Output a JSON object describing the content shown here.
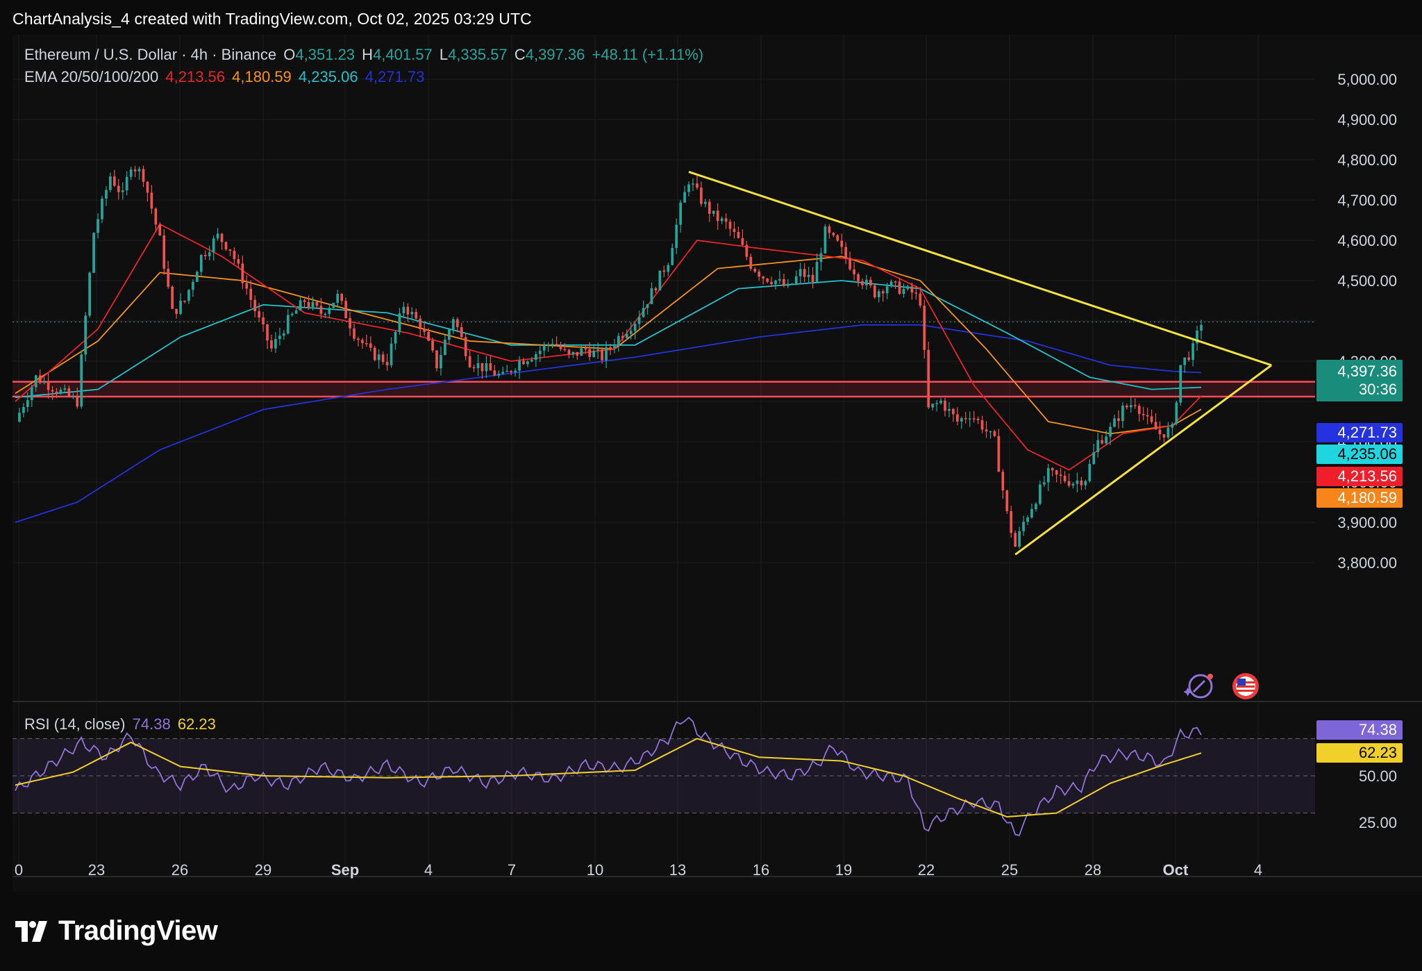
{
  "header": {
    "text": "ChartAnalysis_4 created with TradingView.com, Oct 02, 2025 03:29 UTC"
  },
  "legend": {
    "symbol": "Ethereum / U.S. Dollar · 4h · Binance",
    "o_label": "O",
    "o": "4,351.23",
    "h_label": "H",
    "h": "4,401.57",
    "l_label": "L",
    "l": "4,335.57",
    "c_label": "C",
    "c": "4,397.36",
    "change": "+48.11 (+1.11%)",
    "ema_label": "EMA 20/50/100/200",
    "ema20": "4,213.56",
    "ema50": "4,180.59",
    "ema100": "4,235.06",
    "ema200": "4,271.73"
  },
  "rsi_legend": {
    "label": "RSI (14, close)",
    "rsi": "74.38",
    "ma": "62.23"
  },
  "price_tags": {
    "last": "4,397.36",
    "countdown": "30:36",
    "ema200": "4,271.73",
    "ema100": "4,235.06",
    "ema20": "4,213.56",
    "ema50": "4,180.59",
    "rsi": "74.38",
    "rsi_ma": "62.23"
  },
  "colors": {
    "up": "#26a69a",
    "down": "#ef5350",
    "ema20": "#e8252a",
    "ema50": "#f7931a",
    "ema100": "#22c1c8",
    "ema200": "#2333d8",
    "trendline": "#f5e23c",
    "zone": "#ff4d5a",
    "rsi": "#8f73d9",
    "rsi_ma": "#f2d02a"
  },
  "logo": {
    "text": "TradingView"
  },
  "chart_data": [
    {
      "type": "candlestick",
      "title": "Ethereum / U.S. Dollar · 4h · Binance",
      "x_ticks": [
        "0",
        "23",
        "26",
        "29",
        "Sep",
        "4",
        "7",
        "10",
        "13",
        "16",
        "19",
        "22",
        "25",
        "28",
        "Oct",
        "4"
      ],
      "y_ticks": [
        "5,000.00",
        "4,900.00",
        "4,800.00",
        "4,700.00",
        "4,600.00",
        "4,500.00",
        "4,300.00",
        "4,100.00",
        "4,000.00",
        "3,900.00",
        "3,800.00"
      ],
      "ylim": [
        3720,
        5030
      ],
      "grid": true,
      "close_path": [
        [
          0,
          4150
        ],
        [
          5,
          4260
        ],
        [
          10,
          4230
        ],
        [
          15,
          4200
        ],
        [
          19,
          4620
        ],
        [
          21,
          4690
        ],
        [
          23,
          4760
        ],
        [
          26,
          4710
        ],
        [
          28,
          4790
        ],
        [
          31,
          4760
        ],
        [
          35,
          4600
        ],
        [
          38,
          4420
        ],
        [
          41,
          4450
        ],
        [
          45,
          4560
        ],
        [
          49,
          4610
        ],
        [
          52,
          4580
        ],
        [
          56,
          4480
        ],
        [
          59,
          4400
        ],
        [
          62,
          4330
        ],
        [
          66,
          4400
        ],
        [
          70,
          4450
        ],
        [
          74,
          4420
        ],
        [
          78,
          4460
        ],
        [
          82,
          4370
        ],
        [
          86,
          4320
        ],
        [
          90,
          4300
        ],
        [
          94,
          4440
        ],
        [
          98,
          4390
        ],
        [
          102,
          4290
        ],
        [
          106,
          4410
        ],
        [
          110,
          4300
        ],
        [
          114,
          4280
        ],
        [
          118,
          4260
        ],
        [
          122,
          4300
        ],
        [
          126,
          4320
        ],
        [
          130,
          4350
        ],
        [
          134,
          4310
        ],
        [
          138,
          4330
        ],
        [
          142,
          4310
        ],
        [
          146,
          4360
        ],
        [
          150,
          4400
        ],
        [
          154,
          4470
        ],
        [
          158,
          4550
        ],
        [
          161,
          4680
        ],
        [
          163,
          4750
        ],
        [
          166,
          4700
        ],
        [
          169,
          4660
        ],
        [
          172,
          4640
        ],
        [
          175,
          4600
        ],
        [
          178,
          4540
        ],
        [
          181,
          4510
        ],
        [
          184,
          4500
        ],
        [
          187,
          4480
        ],
        [
          190,
          4520
        ],
        [
          193,
          4500
        ],
        [
          196,
          4620
        ],
        [
          199,
          4590
        ],
        [
          202,
          4540
        ],
        [
          205,
          4500
        ],
        [
          208,
          4470
        ],
        [
          211,
          4490
        ],
        [
          214,
          4480
        ],
        [
          217,
          4470
        ],
        [
          219,
          4450
        ],
        [
          221,
          4180
        ],
        [
          224,
          4200
        ],
        [
          228,
          4150
        ],
        [
          231,
          4170
        ],
        [
          234,
          4140
        ],
        [
          237,
          4100
        ],
        [
          240,
          3920
        ],
        [
          242,
          3840
        ],
        [
          244,
          3900
        ],
        [
          247,
          3960
        ],
        [
          250,
          4020
        ],
        [
          253,
          4010
        ],
        [
          256,
          4000
        ],
        [
          259,
          4010
        ],
        [
          262,
          4100
        ],
        [
          265,
          4130
        ],
        [
          268,
          4180
        ],
        [
          271,
          4200
        ],
        [
          274,
          4150
        ],
        [
          277,
          4120
        ],
        [
          280,
          4130
        ],
        [
          282,
          4290
        ],
        [
          285,
          4330
        ],
        [
          287,
          4397.36
        ]
      ],
      "ema20": [
        [
          0,
          4200
        ],
        [
          20,
          4380
        ],
        [
          35,
          4640
        ],
        [
          50,
          4560
        ],
        [
          70,
          4420
        ],
        [
          95,
          4370
        ],
        [
          120,
          4300
        ],
        [
          145,
          4330
        ],
        [
          165,
          4600
        ],
        [
          180,
          4580
        ],
        [
          205,
          4550
        ],
        [
          219,
          4480
        ],
        [
          232,
          4240
        ],
        [
          245,
          4080
        ],
        [
          255,
          4030
        ],
        [
          268,
          4120
        ],
        [
          280,
          4140
        ],
        [
          287,
          4213.56
        ]
      ],
      "ema50": [
        [
          0,
          4220
        ],
        [
          20,
          4350
        ],
        [
          35,
          4520
        ],
        [
          55,
          4500
        ],
        [
          80,
          4430
        ],
        [
          110,
          4350
        ],
        [
          145,
          4330
        ],
        [
          170,
          4530
        ],
        [
          200,
          4560
        ],
        [
          219,
          4500
        ],
        [
          235,
          4330
        ],
        [
          250,
          4150
        ],
        [
          265,
          4120
        ],
        [
          280,
          4140
        ],
        [
          287,
          4180.59
        ]
      ],
      "ema100": [
        [
          0,
          4210
        ],
        [
          20,
          4230
        ],
        [
          40,
          4360
        ],
        [
          60,
          4440
        ],
        [
          90,
          4420
        ],
        [
          120,
          4340
        ],
        [
          150,
          4340
        ],
        [
          175,
          4480
        ],
        [
          200,
          4500
        ],
        [
          219,
          4480
        ],
        [
          240,
          4370
        ],
        [
          260,
          4260
        ],
        [
          275,
          4230
        ],
        [
          287,
          4235.06
        ]
      ],
      "ema200": [
        [
          0,
          3900
        ],
        [
          15,
          3950
        ],
        [
          35,
          4080
        ],
        [
          60,
          4180
        ],
        [
          90,
          4230
        ],
        [
          120,
          4270
        ],
        [
          150,
          4310
        ],
        [
          180,
          4360
        ],
        [
          205,
          4390
        ],
        [
          219,
          4390
        ],
        [
          245,
          4350
        ],
        [
          265,
          4290
        ],
        [
          280,
          4275
        ],
        [
          287,
          4271.73
        ]
      ],
      "resistance_zone": [
        4212,
        4249
      ],
      "trendlines": [
        {
          "from": [
            163,
            4770
          ],
          "to": [
            304,
            4290
          ]
        },
        {
          "from": [
            242,
            3820
          ],
          "to": [
            304,
            4290
          ]
        }
      ]
    },
    {
      "type": "line",
      "title": "RSI (14, close)",
      "y_ticks": [
        "74.38",
        "62.23",
        "50.00",
        "25.00"
      ],
      "ylim": [
        0,
        100
      ],
      "bands": [
        30,
        50,
        70
      ],
      "series": [
        {
          "name": "RSI",
          "values": [
            [
              0,
              42
            ],
            [
              8,
              55
            ],
            [
              16,
              68
            ],
            [
              22,
              60
            ],
            [
              28,
              72
            ],
            [
              34,
              52
            ],
            [
              40,
              45
            ],
            [
              46,
              55
            ],
            [
              52,
              42
            ],
            [
              58,
              50
            ],
            [
              66,
              45
            ],
            [
              74,
              55
            ],
            [
              82,
              48
            ],
            [
              90,
              56
            ],
            [
              98,
              46
            ],
            [
              106,
              54
            ],
            [
              114,
              46
            ],
            [
              122,
              52
            ],
            [
              130,
              48
            ],
            [
              138,
              56
            ],
            [
              146,
              54
            ],
            [
              152,
              60
            ],
            [
              158,
              70
            ],
            [
              162,
              82
            ],
            [
              166,
              72
            ],
            [
              170,
              66
            ],
            [
              176,
              58
            ],
            [
              182,
              52
            ],
            [
              188,
              50
            ],
            [
              194,
              56
            ],
            [
              198,
              66
            ],
            [
              204,
              52
            ],
            [
              210,
              50
            ],
            [
              216,
              48
            ],
            [
              220,
              22
            ],
            [
              226,
              30
            ],
            [
              232,
              36
            ],
            [
              238,
              34
            ],
            [
              242,
              18
            ],
            [
              246,
              30
            ],
            [
              252,
              42
            ],
            [
              258,
              44
            ],
            [
              262,
              58
            ],
            [
              268,
              62
            ],
            [
              274,
              60
            ],
            [
              278,
              56
            ],
            [
              282,
              72
            ],
            [
              287,
              74.38
            ]
          ]
        },
        {
          "name": "RSI MA",
          "values": [
            [
              0,
              45
            ],
            [
              14,
              52
            ],
            [
              28,
              68
            ],
            [
              40,
              55
            ],
            [
              60,
              50
            ],
            [
              90,
              49
            ],
            [
              120,
              50
            ],
            [
              150,
              53
            ],
            [
              165,
              70
            ],
            [
              180,
              60
            ],
            [
              200,
              58
            ],
            [
              215,
              50
            ],
            [
              228,
              38
            ],
            [
              240,
              28
            ],
            [
              252,
              30
            ],
            [
              265,
              46
            ],
            [
              278,
              56
            ],
            [
              287,
              62.23
            ]
          ]
        }
      ]
    }
  ]
}
